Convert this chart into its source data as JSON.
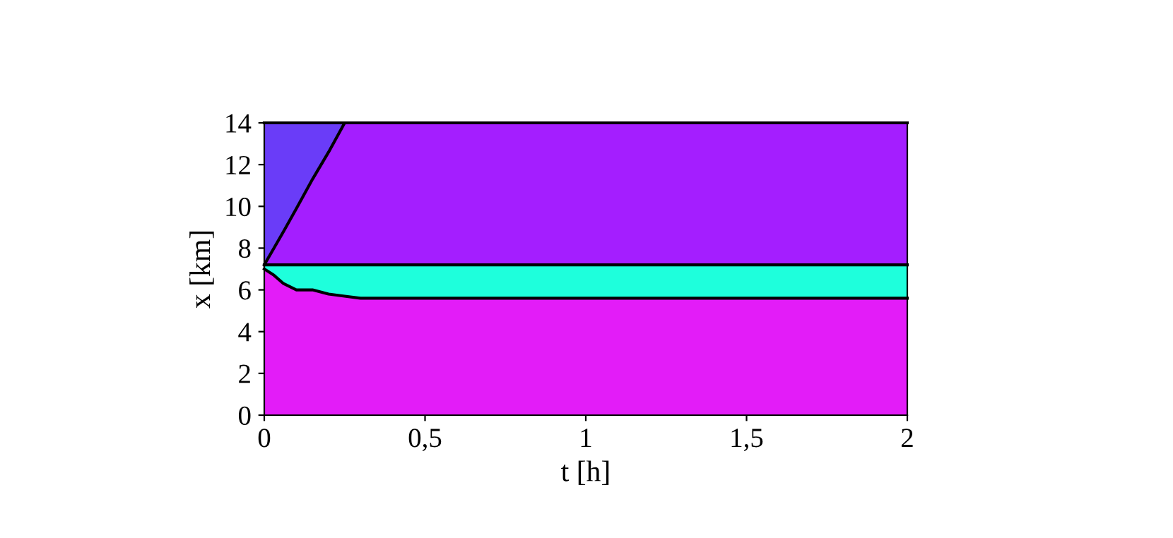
{
  "chart_data": {
    "type": "area",
    "stacked": true,
    "xlabel": "t [h]",
    "ylabel": "x [km]",
    "x": [
      0,
      0.03,
      0.06,
      0.1,
      0.15,
      0.2,
      0.25,
      0.3,
      2
    ],
    "series": [
      {
        "color": "#e31cf8",
        "values": [
          7.0,
          6.7,
          6.3,
          6.0,
          6.0,
          5.8,
          5.7,
          5.6,
          5.6
        ]
      },
      {
        "color": "#1effdc",
        "values": [
          0.2,
          0.5,
          0.9,
          1.2,
          1.2,
          1.4,
          1.5,
          1.6,
          1.6
        ]
      },
      {
        "color": "#a41eff",
        "values": [
          0,
          0.8,
          1.6,
          2.7,
          4.1,
          5.4,
          6.8,
          6.8,
          6.8
        ]
      },
      {
        "color": "#6a3cf8",
        "x": [
          0,
          0.03,
          0.06,
          0.1,
          0.15,
          0.2,
          0.25
        ],
        "values": [
          6.8,
          6.0,
          5.2,
          4.1,
          2.7,
          1.4,
          0
        ]
      }
    ],
    "xlim": [
      0,
      2
    ],
    "xticks": [
      0,
      {
        "value": 0.5,
        "label": "0,5"
      },
      1,
      {
        "value": 1.5,
        "label": "1,5"
      },
      2
    ],
    "ylim": [
      0,
      14
    ],
    "yticks": [
      0,
      2,
      4,
      6,
      8,
      10,
      12,
      14
    ],
    "grid": false
  }
}
